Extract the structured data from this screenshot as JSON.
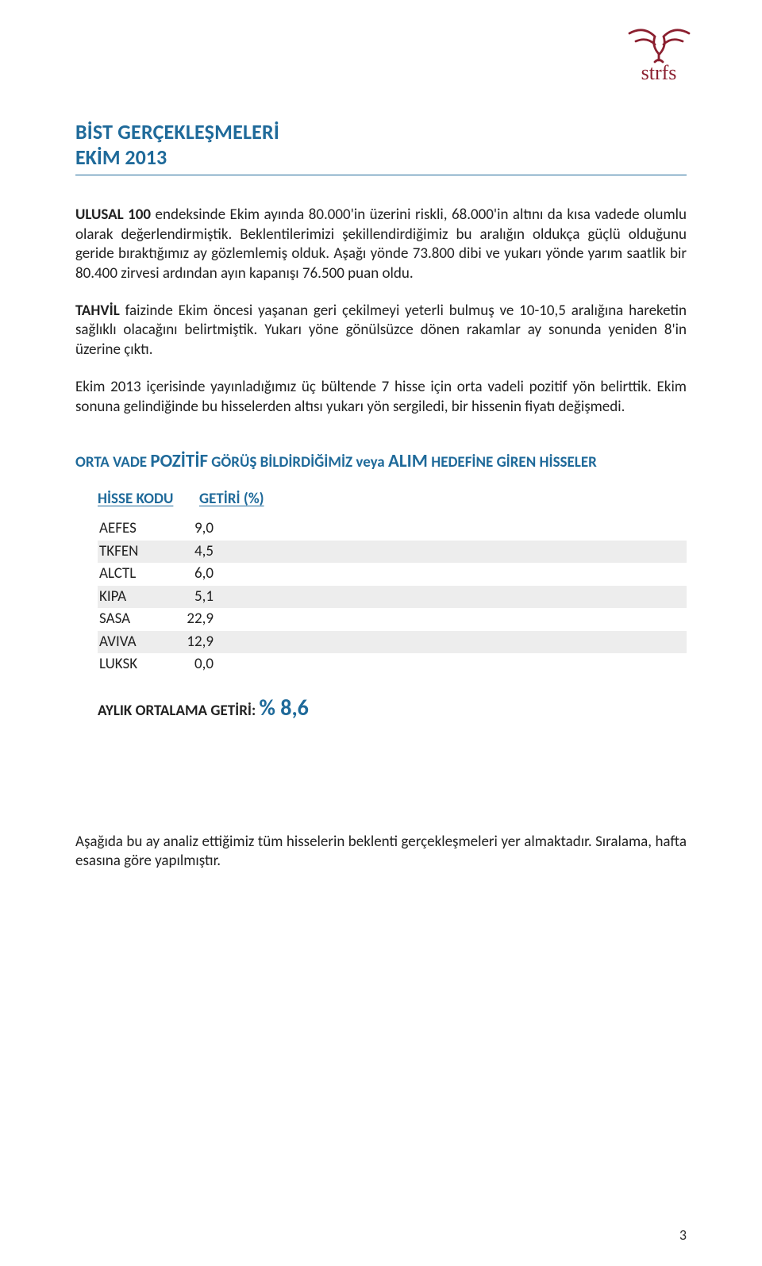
{
  "brand": {
    "name": "strfs",
    "logo_color": "#8b1f2f",
    "logo_text_color": "#8b1f2f"
  },
  "header": {
    "line1": "BİST GERÇEKLEŞMELERİ",
    "line2": "EKİM 2013",
    "color": "#1f6a9a",
    "rule_color": "#1f6a9a"
  },
  "paragraphs": {
    "p1_a": "ULUSAL 100",
    "p1_b": " endeksinde Ekim ayında 80.000'in üzerini riskli, 68.000'in altını da kısa vadede olumlu olarak değerlendirmiştik. Beklentilerimizi şekillendirdiğimiz bu aralığın oldukça güçlü olduğunu geride bıraktığımız ay gözlemlemiş olduk. Aşağı yönde 73.800 dibi ve yukarı yönde yarım saatlik bir 80.400 zirvesi ardından ayın kapanışı 76.500 puan oldu.",
    "p2_a": "TAHVİL",
    "p2_b": " faizinde Ekim öncesi yaşanan geri çekilmeyi yeterli bulmuş ve 10-10,5 aralığına hareketin sağlıklı olacağını belirtmiştik. Yukarı yöne gönülsüzce dönen rakamlar ay sonunda yeniden 8'in üzerine çıktı.",
    "p3": "Ekim 2013 içerisinde yayınladığımız üç bültende 7 hisse için orta vadeli pozitif yön belirttik. Ekim sonuna gelindiğinde bu hisselerden altısı yukarı yön sergiledi, bir hissenin fiyatı değişmedi."
  },
  "section": {
    "pre": "ORTA VADE ",
    "kw1": "POZİTİF",
    "mid": " GÖRÜŞ BİLDİRDİĞİMİZ veya ",
    "kw2": "ALIM",
    "post": " HEDEFİNE GİREN HİSSELER"
  },
  "table": {
    "header_code": "HİSSE KODU",
    "header_return": "GETİRİ (%)",
    "header_color": "#1f6a9a",
    "shaded_bg": "#ededed",
    "rows": [
      {
        "code": "AEFES",
        "value": "9,0",
        "shaded": false
      },
      {
        "code": "TKFEN",
        "value": "4,5",
        "shaded": true
      },
      {
        "code": "ALCTL",
        "value": "6,0",
        "shaded": false
      },
      {
        "code": "KIPA",
        "value": "5,1",
        "shaded": true
      },
      {
        "code": "SASA",
        "value": "22,9",
        "shaded": false
      },
      {
        "code": "AVIVA",
        "value": "12,9",
        "shaded": true
      },
      {
        "code": "LUKSK",
        "value": "0,0",
        "shaded": false
      }
    ]
  },
  "average": {
    "label": "AYLIK ORTALAMA GETİRİ:  ",
    "value": "% 8,6",
    "value_color": "#1f6a9a"
  },
  "footer_para": "Aşağıda bu ay analiz ettiğimiz tüm hisselerin beklenti gerçekleşmeleri yer almaktadır. Sıralama, hafta esasına göre yapılmıştır.",
  "page_number": "3"
}
